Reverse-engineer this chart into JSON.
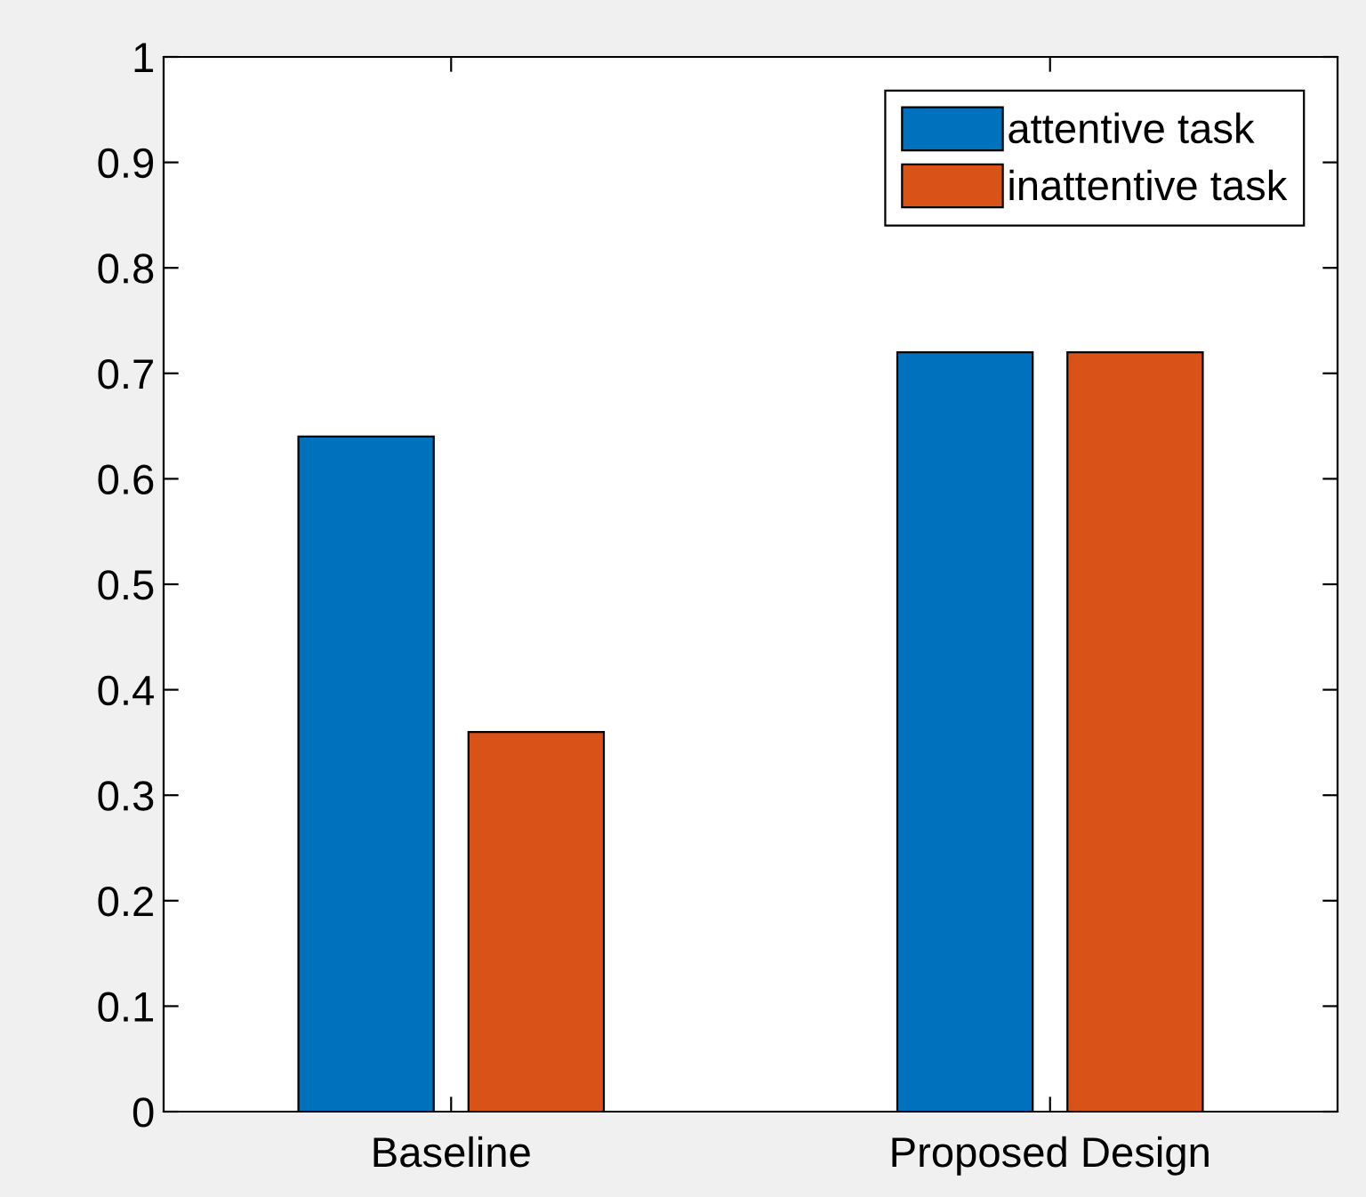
{
  "chart_data": {
    "type": "bar",
    "categories": [
      "Baseline",
      "Proposed Design"
    ],
    "series": [
      {
        "name": "attentive task",
        "color": "#0072bd",
        "values": [
          0.64,
          0.72
        ]
      },
      {
        "name": "inattentive task",
        "color": "#d95319",
        "values": [
          0.36,
          0.72
        ]
      }
    ],
    "ylim": [
      0,
      1
    ],
    "yticks": [
      0,
      0.1,
      0.2,
      0.3,
      0.4,
      0.5,
      0.6,
      0.7,
      0.8,
      0.9,
      1
    ],
    "grid": false,
    "legend": "top right"
  }
}
